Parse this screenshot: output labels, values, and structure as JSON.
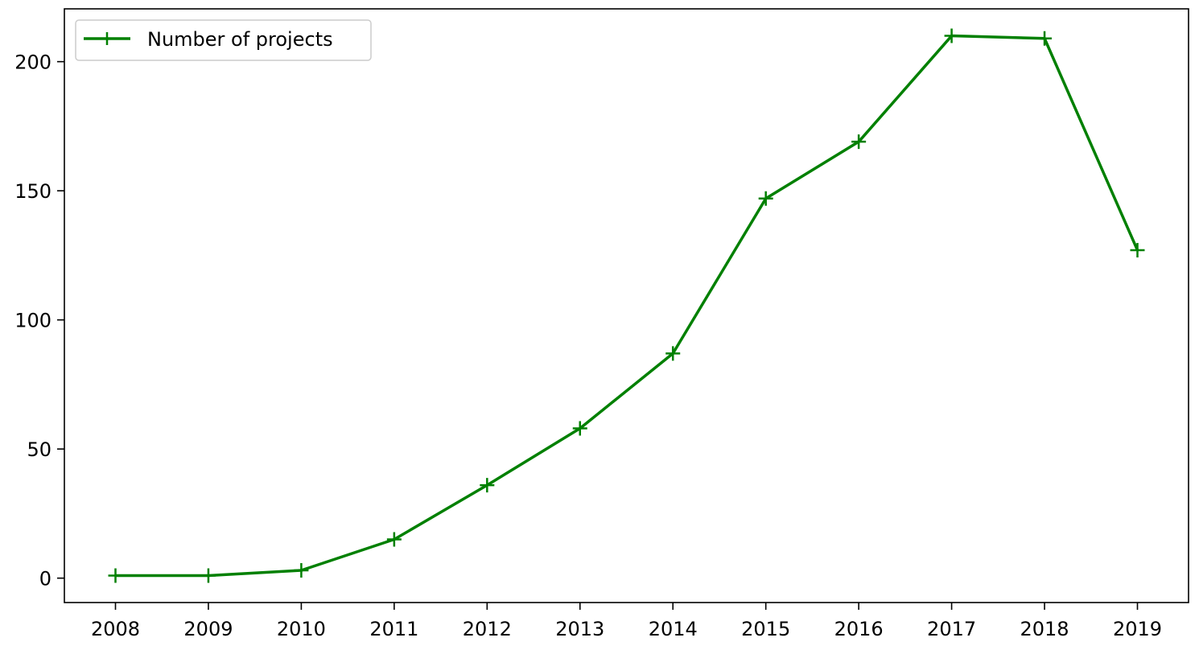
{
  "chart_data": {
    "type": "line",
    "title": "",
    "xlabel": "",
    "ylabel": "",
    "x": [
      2008,
      2009,
      2010,
      2011,
      2012,
      2013,
      2014,
      2015,
      2016,
      2017,
      2018,
      2019
    ],
    "series": [
      {
        "name": "Number of projects",
        "values": [
          1,
          1,
          3,
          15,
          36,
          58,
          87,
          147,
          169,
          210,
          209,
          127
        ],
        "color": "#008000",
        "marker": "plus"
      }
    ],
    "x_ticks": [
      "2008",
      "2009",
      "2010",
      "2011",
      "2012",
      "2013",
      "2014",
      "2015",
      "2016",
      "2017",
      "2018",
      "2019"
    ],
    "y_ticks": [
      "0",
      "50",
      "100",
      "150",
      "200"
    ],
    "y_tick_values": [
      0,
      50,
      100,
      150,
      200
    ],
    "xlim": [
      2007.45,
      2019.55
    ],
    "ylim": [
      -9.45,
      220.45
    ],
    "grid": false,
    "legend_position": "top-left"
  }
}
